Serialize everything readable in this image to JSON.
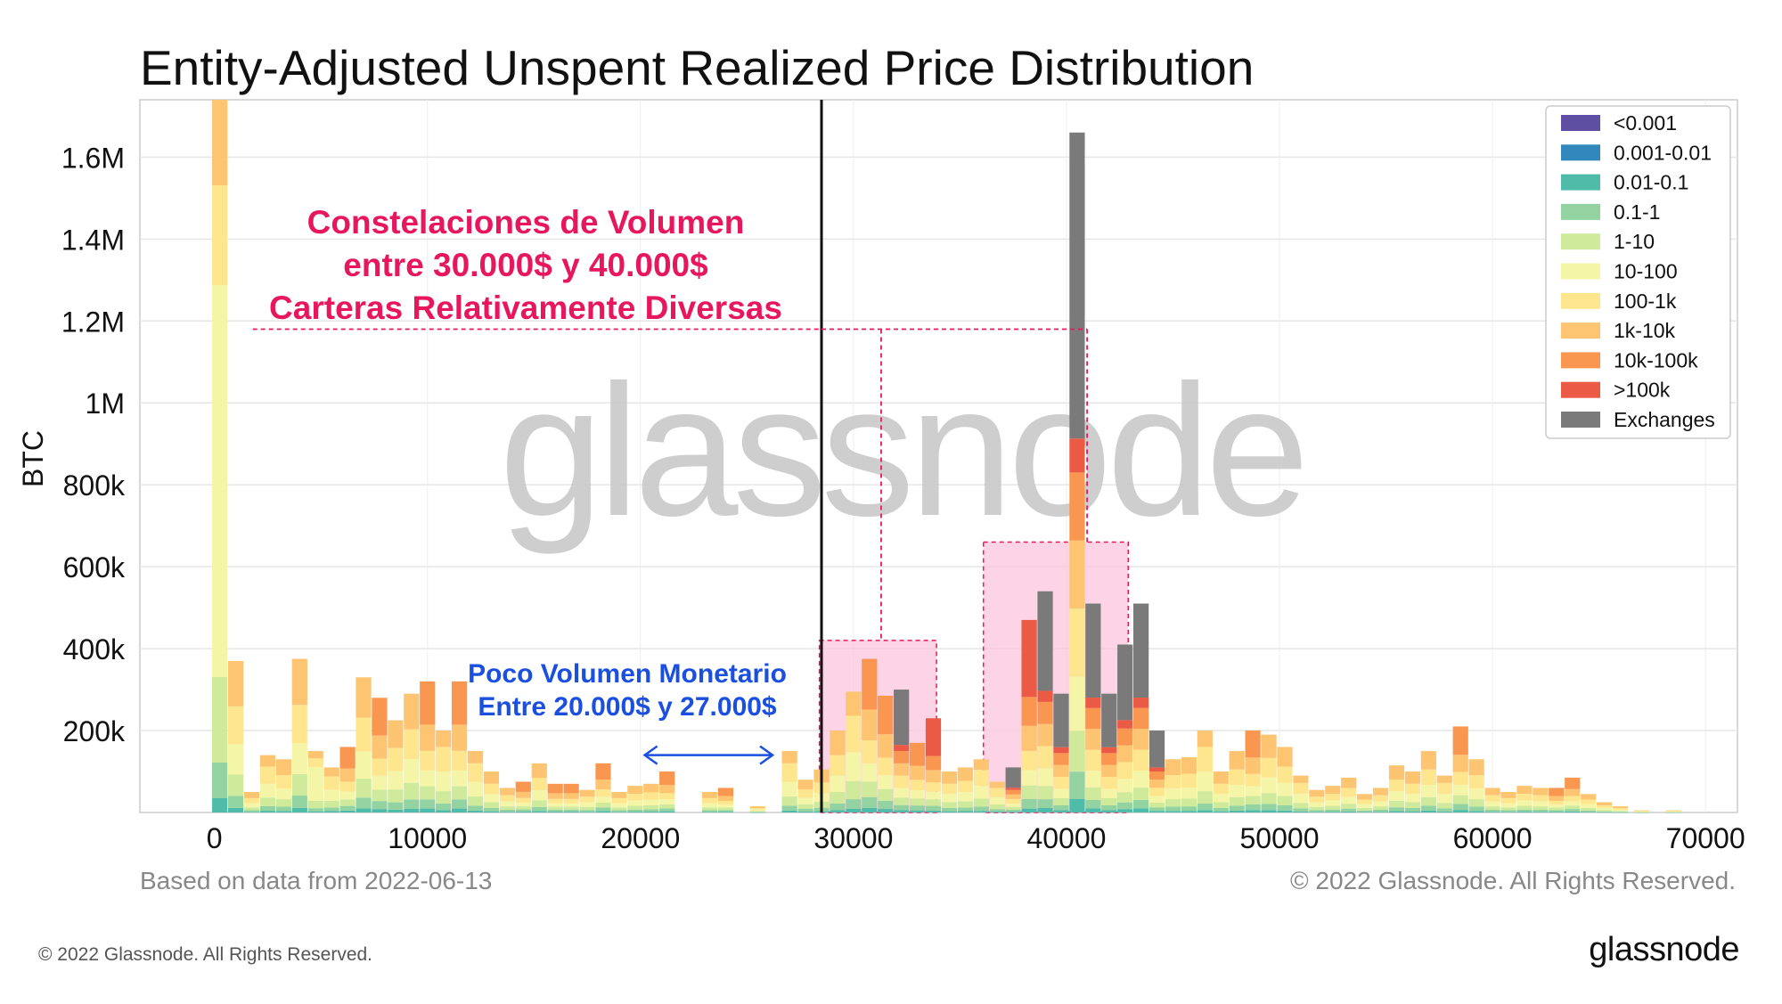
{
  "colors": {
    "<0.001": "#5e4fa2",
    "0.001-0.01": "#3288bd",
    "0.01-0.1": "#4fbca9",
    "0.1-1": "#93d3a2",
    "1-10": "#cfea9a",
    "10-100": "#f5f5a8",
    "100-1k": "#fde68e",
    "1k-10k": "#fdc572",
    "10k-100k": "#f99750",
    ">100k": "#ea5a44",
    "Exchanges": "#7a7a7a",
    "highlight_pink": "#e8175d",
    "highlight_blue": "#1a4fe0",
    "accent_black": "#111111"
  },
  "chart_data": {
    "type": "bar",
    "stacked": true,
    "title": "Entity-Adjusted Unspent Realized Price Distribution",
    "xlabel": "",
    "ylabel": "BTC",
    "xlim": [
      -3500,
      71500
    ],
    "ylim": [
      0,
      1740000
    ],
    "xticks": [
      0,
      10000,
      20000,
      30000,
      40000,
      50000,
      60000,
      70000
    ],
    "yticks": [
      200000,
      400000,
      600000,
      800000,
      1000000,
      1200000,
      1400000,
      1600000
    ],
    "ytick_labels": [
      "200k",
      "400k",
      "600k",
      "800k",
      "1M",
      "1.2M",
      "1.4M",
      "1.6M"
    ],
    "grid": true,
    "legend_position": "top-right",
    "legend": [
      "<0.001",
      "0.001-0.01",
      "0.01-0.1",
      "0.1-1",
      "1-10",
      "10-100",
      "100-1k",
      "1k-10k",
      "10k-100k",
      ">100k",
      "Exchanges"
    ],
    "bin_width": 1000,
    "bars": [
      {
        "x": 250,
        "total": 1740000,
        "dominant": "10-100"
      },
      {
        "x": 1000,
        "total": 370000,
        "dominant": "1k-10k"
      },
      {
        "x": 1750,
        "total": 50000,
        "dominant": "1k-10k"
      },
      {
        "x": 2500,
        "total": 140000,
        "dominant": "100-1k"
      },
      {
        "x": 3250,
        "total": 130000,
        "dominant": "1k-10k"
      },
      {
        "x": 4000,
        "total": 375000,
        "dominant": "1k-10k"
      },
      {
        "x": 4750,
        "total": 150000,
        "dominant": "10-100"
      },
      {
        "x": 5500,
        "total": 110000,
        "dominant": "100-1k"
      },
      {
        "x": 6250,
        "total": 160000,
        "dominant": "10k-100k"
      },
      {
        "x": 7000,
        "total": 330000,
        "dominant": "1k-10k"
      },
      {
        "x": 7750,
        "total": 280000,
        "dominant": "10k-100k"
      },
      {
        "x": 8500,
        "total": 225000,
        "dominant": "1k-10k"
      },
      {
        "x": 9250,
        "total": 290000,
        "dominant": "1k-10k"
      },
      {
        "x": 10000,
        "total": 320000,
        "dominant": "10k-100k"
      },
      {
        "x": 10750,
        "total": 200000,
        "dominant": "100-1k"
      },
      {
        "x": 11500,
        "total": 320000,
        "dominant": "10k-100k"
      },
      {
        "x": 12250,
        "total": 150000,
        "dominant": "100-1k"
      },
      {
        "x": 13000,
        "total": 100000,
        "dominant": "1k-10k"
      },
      {
        "x": 13750,
        "total": 60000,
        "dominant": "1k-10k"
      },
      {
        "x": 14500,
        "total": 75000,
        "dominant": "10k-100k"
      },
      {
        "x": 15250,
        "total": 120000,
        "dominant": "1k-10k"
      },
      {
        "x": 16000,
        "total": 70000,
        "dominant": "10k-100k"
      },
      {
        "x": 16750,
        "total": 70000,
        "dominant": "10k-100k"
      },
      {
        "x": 17500,
        "total": 55000,
        "dominant": "1k-10k"
      },
      {
        "x": 18250,
        "total": 120000,
        "dominant": "10k-100k"
      },
      {
        "x": 19000,
        "total": 50000,
        "dominant": "1k-10k"
      },
      {
        "x": 19750,
        "total": 65000,
        "dominant": "1k-10k"
      },
      {
        "x": 20500,
        "total": 70000,
        "dominant": "1k-10k"
      },
      {
        "x": 21250,
        "total": 100000,
        "dominant": "10k-100k"
      },
      {
        "x": 23250,
        "total": 50000,
        "dominant": "1k-10k"
      },
      {
        "x": 24000,
        "total": 60000,
        "dominant": "10k-100k"
      },
      {
        "x": 25500,
        "total": 15000,
        "dominant": "1k-10k"
      },
      {
        "x": 27000,
        "total": 150000,
        "dominant": "100-1k"
      },
      {
        "x": 27750,
        "total": 80000,
        "dominant": "1k-10k"
      },
      {
        "x": 28500,
        "total": 105000,
        "dominant": "1k-10k"
      },
      {
        "x": 29250,
        "total": 200000,
        "dominant": "1k-10k"
      },
      {
        "x": 30000,
        "total": 295000,
        "dominant": "100-1k"
      },
      {
        "x": 30750,
        "total": 375000,
        "dominant": "10k-100k"
      },
      {
        "x": 31500,
        "total": 285000,
        "dominant": "10k-100k"
      },
      {
        "x": 32250,
        "total": 300000,
        "dominant": "Exchanges"
      },
      {
        "x": 33000,
        "total": 170000,
        "dominant": "10k-100k"
      },
      {
        "x": 33750,
        "total": 230000,
        "dominant": ">100k"
      },
      {
        "x": 34500,
        "total": 100000,
        "dominant": "1k-10k"
      },
      {
        "x": 35250,
        "total": 110000,
        "dominant": "1k-10k"
      },
      {
        "x": 36000,
        "total": 130000,
        "dominant": "100-1k"
      },
      {
        "x": 36750,
        "total": 75000,
        "dominant": "100-1k"
      },
      {
        "x": 37500,
        "total": 110000,
        "dominant": "Exchanges"
      },
      {
        "x": 38250,
        "total": 470000,
        "dominant": ">100k"
      },
      {
        "x": 39000,
        "total": 540000,
        "dominant": "Exchanges"
      },
      {
        "x": 39750,
        "total": 290000,
        "dominant": "Exchanges"
      },
      {
        "x": 40500,
        "total": 1660000,
        "dominant": "Exchanges"
      },
      {
        "x": 41250,
        "total": 510000,
        "dominant": "Exchanges"
      },
      {
        "x": 42000,
        "total": 290000,
        "dominant": "Exchanges"
      },
      {
        "x": 42750,
        "total": 410000,
        "dominant": "Exchanges"
      },
      {
        "x": 43500,
        "total": 510000,
        "dominant": "Exchanges"
      },
      {
        "x": 44250,
        "total": 200000,
        "dominant": "Exchanges"
      },
      {
        "x": 45000,
        "total": 130000,
        "dominant": "1k-10k"
      },
      {
        "x": 45750,
        "total": 135000,
        "dominant": "1k-10k"
      },
      {
        "x": 46500,
        "total": 200000,
        "dominant": "100-1k"
      },
      {
        "x": 47250,
        "total": 100000,
        "dominant": "1k-10k"
      },
      {
        "x": 48000,
        "total": 150000,
        "dominant": "1k-10k"
      },
      {
        "x": 48750,
        "total": 200000,
        "dominant": "10k-100k"
      },
      {
        "x": 49500,
        "total": 190000,
        "dominant": "1k-10k"
      },
      {
        "x": 50250,
        "total": 160000,
        "dominant": "1k-10k"
      },
      {
        "x": 51000,
        "total": 90000,
        "dominant": "100-1k"
      },
      {
        "x": 51750,
        "total": 55000,
        "dominant": "1k-10k"
      },
      {
        "x": 52500,
        "total": 65000,
        "dominant": "1k-10k"
      },
      {
        "x": 53250,
        "total": 85000,
        "dominant": "1k-10k"
      },
      {
        "x": 54000,
        "total": 45000,
        "dominant": "1k-10k"
      },
      {
        "x": 54750,
        "total": 60000,
        "dominant": "1k-10k"
      },
      {
        "x": 55500,
        "total": 115000,
        "dominant": "1k-10k"
      },
      {
        "x": 56250,
        "total": 100000,
        "dominant": "1k-10k"
      },
      {
        "x": 57000,
        "total": 150000,
        "dominant": "1k-10k"
      },
      {
        "x": 57750,
        "total": 90000,
        "dominant": "100-1k"
      },
      {
        "x": 58500,
        "total": 210000,
        "dominant": "10k-100k"
      },
      {
        "x": 59250,
        "total": 130000,
        "dominant": "1k-10k"
      },
      {
        "x": 60000,
        "total": 60000,
        "dominant": "1k-10k"
      },
      {
        "x": 60750,
        "total": 50000,
        "dominant": "1k-10k"
      },
      {
        "x": 61500,
        "total": 65000,
        "dominant": "1k-10k"
      },
      {
        "x": 62250,
        "total": 60000,
        "dominant": "1k-10k"
      },
      {
        "x": 63000,
        "total": 60000,
        "dominant": "10k-100k"
      },
      {
        "x": 63750,
        "total": 85000,
        "dominant": "10k-100k"
      },
      {
        "x": 64500,
        "total": 45000,
        "dominant": "1k-10k"
      },
      {
        "x": 65250,
        "total": 25000,
        "dominant": "1k-10k"
      },
      {
        "x": 66000,
        "total": 15000,
        "dominant": "1k-10k"
      },
      {
        "x": 67000,
        "total": 5000,
        "dominant": "1k-10k"
      },
      {
        "x": 68500,
        "total": 5000,
        "dominant": "1k-10k"
      }
    ],
    "vertical_line": {
      "x": 28500,
      "color": "#111111"
    },
    "highlight_regions": [
      {
        "x0": 28400,
        "x1": 33900,
        "y0": 0,
        "y1": 420000
      },
      {
        "x0": 36100,
        "x1": 42900,
        "y0": 0,
        "y1": 660000
      }
    ],
    "bracket": {
      "x_left": 1800,
      "x_right": 28500,
      "x_a": 31300,
      "x_b": 40300,
      "y": 1180000,
      "y_a_bottom": 420000,
      "y_b_bottom": 660000
    },
    "range_arrow": {
      "x0": 20200,
      "x1": 26200,
      "y": 140000
    }
  },
  "annotations": {
    "pink_lines": [
      "Constelaciones de Volumen",
      "entre 30.000$ y 40.000$",
      "Carteras Relativamente Diversas"
    ],
    "blue_lines": [
      "Poco Volumen Monetario",
      "Entre 20.000$ y 27.000$"
    ]
  },
  "watermark": "glassnode",
  "source_note": "Based on data from 2022-06-13",
  "copyright_note": "© 2022 Glassnode. All Rights Reserved.",
  "footer": {
    "copyright": "© 2022 Glassnode. All Rights Reserved.",
    "logo": "glassnode"
  }
}
